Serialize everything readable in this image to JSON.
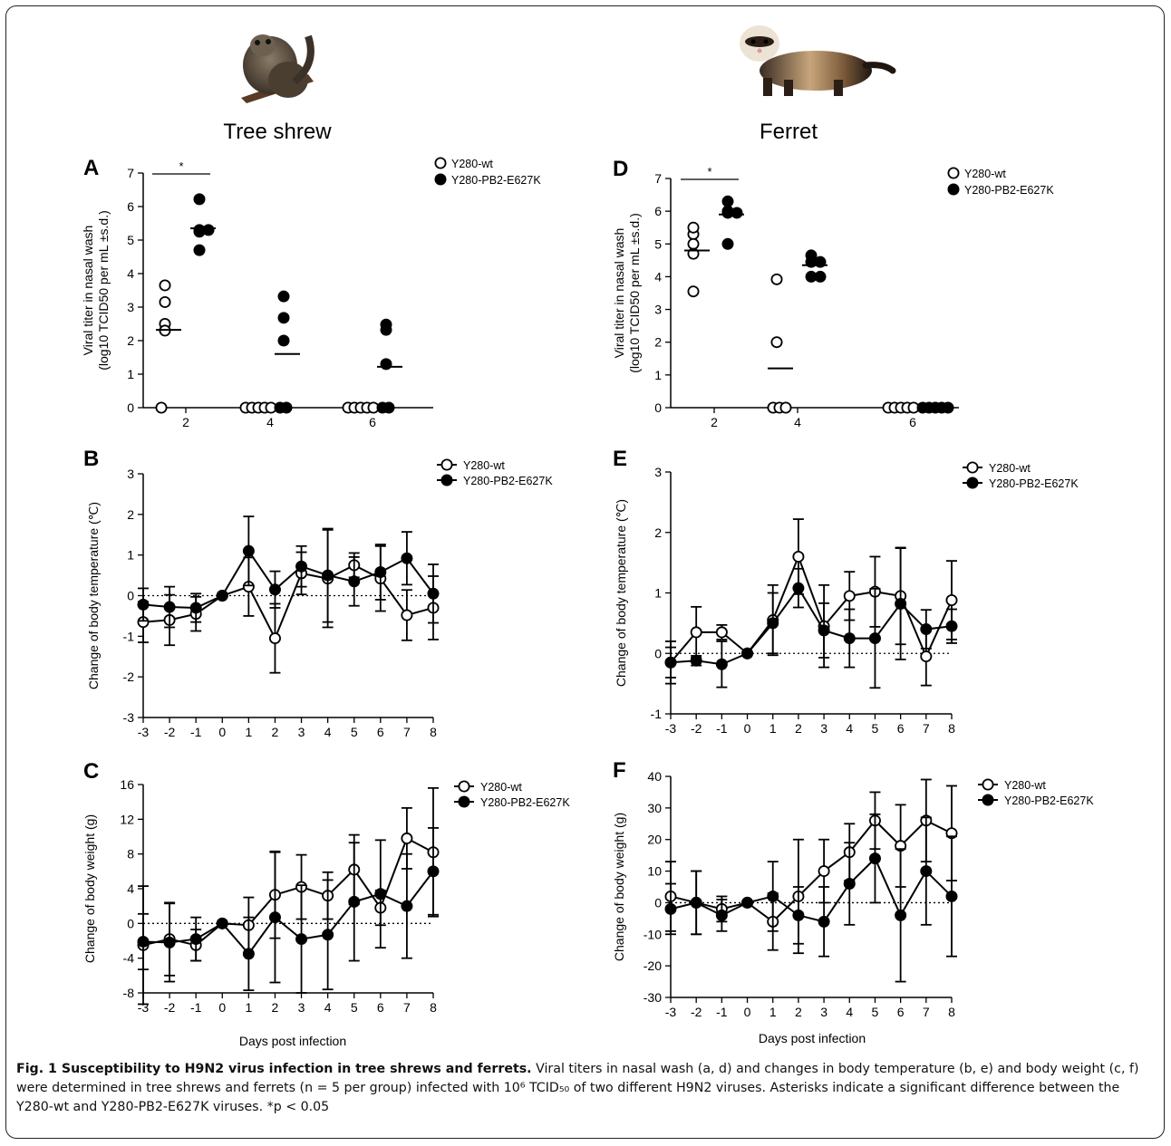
{
  "figure": {
    "animals": [
      {
        "name": "Tree shrew",
        "image_icon": "tree-shrew-photo"
      },
      {
        "name": "Ferret",
        "image_icon": "ferret-photo"
      }
    ],
    "shared_xlabel": "Days post infection"
  },
  "caption": {
    "bold": "Fig. 1 Susceptibility to H9N2 virus infection in tree shrews and ferrets.",
    "text": "Viral titers in nasal wash (a, d) and changes in body temperature (b, e) and body weight (c, f) were determined in tree shrews and ferrets (n = 5 per group) infected with 10⁶ TCID₅₀ of two different H9N2 viruses. Asterisks indicate a significant difference between the Y280-wt and Y280-PB2-E627K viruses. *p < 0.05"
  },
  "chart_data": [
    {
      "id": "A",
      "type": "scatter",
      "animal": "Tree shrew",
      "ylabel": [
        "Viral titer in nasal wash",
        "(log10 TCID50 per mL ±s.d.)"
      ],
      "ylim": [
        0,
        7
      ],
      "yticks": [
        0,
        1,
        2,
        3,
        4,
        5,
        6,
        7
      ],
      "categories": [
        "2",
        "4",
        "6"
      ],
      "legend": "top-right",
      "series": [
        {
          "name": "Y280-wt",
          "marker": "open",
          "points": [
            [
              2,
              3.65
            ],
            [
              2,
              3.15
            ],
            [
              2,
              2.5
            ],
            [
              2,
              2.3
            ],
            [
              2,
              0
            ],
            [
              4,
              0
            ],
            [
              4,
              0
            ],
            [
              4,
              0
            ],
            [
              4,
              0
            ],
            [
              4,
              0
            ],
            [
              6,
              0
            ],
            [
              6,
              0
            ],
            [
              6,
              0
            ],
            [
              6,
              0
            ],
            [
              6,
              0
            ]
          ],
          "means": [
            2.32,
            0,
            0
          ]
        },
        {
          "name": "Y280-PB2-E627K",
          "marker": "filled",
          "points": [
            [
              2,
              6.22
            ],
            [
              2,
              5.3
            ],
            [
              2,
              5.25
            ],
            [
              2,
              5.3
            ],
            [
              2,
              4.7
            ],
            [
              4,
              3.32
            ],
            [
              4,
              2.68
            ],
            [
              4,
              2.0
            ],
            [
              4,
              0
            ],
            [
              4,
              0
            ],
            [
              6,
              2.48
            ],
            [
              6,
              2.32
            ],
            [
              6,
              1.3
            ],
            [
              6,
              0
            ],
            [
              6,
              0
            ]
          ],
          "means": [
            5.35,
            1.6,
            1.22
          ]
        }
      ],
      "significance": [
        {
          "day": "2",
          "label": "*"
        }
      ]
    },
    {
      "id": "D",
      "type": "scatter",
      "animal": "Ferret",
      "ylabel": [
        "Viral titer in nasal wash",
        "(log10 TCID50 per mL ±s.d.)"
      ],
      "ylim": [
        0,
        7
      ],
      "yticks": [
        0,
        1,
        2,
        3,
        4,
        5,
        6,
        7
      ],
      "categories": [
        "2",
        "4",
        "6"
      ],
      "legend": "top-right",
      "series": [
        {
          "name": "Y280-wt",
          "marker": "open",
          "points": [
            [
              2,
              5.3
            ],
            [
              2,
              5.0
            ],
            [
              2,
              4.7
            ],
            [
              2,
              5.5
            ],
            [
              2,
              3.55
            ],
            [
              4,
              3.92
            ],
            [
              4,
              2.0
            ],
            [
              4,
              0
            ],
            [
              4,
              0
            ],
            [
              4,
              0
            ],
            [
              6,
              0
            ],
            [
              6,
              0
            ],
            [
              6,
              0
            ],
            [
              6,
              0
            ],
            [
              6,
              0
            ]
          ],
          "means": [
            4.8,
            1.2,
            0
          ]
        },
        {
          "name": "Y280-PB2-E627K",
          "marker": "filled",
          "points": [
            [
              2,
              6.3
            ],
            [
              2,
              6.0
            ],
            [
              2,
              5.95
            ],
            [
              2,
              5.95
            ],
            [
              2,
              5.0
            ],
            [
              4,
              4.65
            ],
            [
              4,
              4.45
            ],
            [
              4,
              4.0
            ],
            [
              4,
              4.0
            ],
            [
              4,
              4.45
            ],
            [
              6,
              0
            ],
            [
              6,
              0
            ],
            [
              6,
              0
            ],
            [
              6,
              0
            ],
            [
              6,
              0
            ]
          ],
          "means": [
            5.9,
            4.35,
            0
          ]
        }
      ],
      "significance": [
        {
          "day": "2",
          "label": "*"
        }
      ]
    },
    {
      "id": "B",
      "type": "line",
      "animal": "Tree shrew",
      "ylabel": [
        "Change of body temperature (℃)"
      ],
      "x": [
        -3,
        -2,
        -1,
        0,
        1,
        2,
        3,
        4,
        5,
        6,
        7,
        8
      ],
      "ylim": [
        -3,
        3
      ],
      "yticks": [
        -3,
        -2,
        -1,
        0,
        1,
        2,
        3
      ],
      "legend": "top-right",
      "series": [
        {
          "name": "Y280-wt",
          "marker": "open",
          "values": [
            -0.65,
            -0.6,
            -0.45,
            0,
            0.22,
            -1.05,
            0.55,
            0.42,
            0.75,
            0.42,
            -0.48,
            -0.3
          ],
          "err": [
            0.5,
            0.62,
            0.42,
            0,
            0.72,
            0.85,
            0.52,
            1.2,
            0.3,
            0.8,
            0.62,
            0.78
          ]
        },
        {
          "name": "Y280-PB2-E627K",
          "marker": "filled",
          "values": [
            -0.22,
            -0.28,
            -0.3,
            0,
            1.1,
            0.15,
            0.72,
            0.5,
            0.35,
            0.58,
            0.92,
            0.05
          ],
          "err": [
            0.4,
            0.5,
            0.35,
            0,
            0.85,
            0.45,
            0.5,
            1.15,
            0.6,
            0.68,
            0.65,
            0.72
          ]
        }
      ]
    },
    {
      "id": "E",
      "type": "line",
      "animal": "Ferret",
      "ylabel": [
        "Change of body temperature (℃)"
      ],
      "x": [
        -3,
        -2,
        -1,
        0,
        1,
        2,
        3,
        4,
        5,
        6,
        7,
        8
      ],
      "ylim": [
        -1,
        3
      ],
      "yticks": [
        -1,
        0,
        1,
        2,
        3
      ],
      "legend": "top-right",
      "series": [
        {
          "name": "Y280-wt",
          "marker": "open",
          "values": [
            -0.15,
            0.35,
            0.35,
            0,
            0.55,
            1.6,
            0.45,
            0.95,
            1.02,
            0.95,
            -0.05,
            0.88
          ],
          "err": [
            0.35,
            0.42,
            0.12,
            0,
            0.58,
            0.62,
            0.68,
            0.4,
            0.58,
            0.8,
            0.48,
            0.65
          ]
        },
        {
          "name": "Y280-PB2-E627K",
          "marker": "filled",
          "values": [
            -0.15,
            -0.12,
            -0.18,
            0,
            0.5,
            1.08,
            0.38,
            0.25,
            0.25,
            0.82,
            0.4,
            0.45
          ],
          "err": [
            0.25,
            0.08,
            0.38,
            0,
            0.5,
            0.32,
            0.45,
            0.48,
            0.82,
            0.92,
            0.32,
            0.28
          ]
        }
      ]
    },
    {
      "id": "C",
      "type": "line",
      "animal": "Tree shrew",
      "ylabel": [
        "Change of body weight (g)"
      ],
      "x": [
        -3,
        -2,
        -1,
        0,
        1,
        2,
        3,
        4,
        5,
        6,
        7,
        8
      ],
      "ylim": [
        -8,
        16
      ],
      "yticks": [
        -8,
        -4,
        0,
        4,
        8,
        12,
        16
      ],
      "legend": "top-right",
      "series": [
        {
          "name": "Y280-wt",
          "marker": "open",
          "values": [
            -2.5,
            -1.8,
            -2.5,
            0,
            -0.2,
            3.3,
            4.2,
            3.2,
            6.2,
            1.8,
            9.8,
            8.2
          ],
          "err": [
            6.8,
            4.2,
            1.8,
            0,
            3.2,
            5.0,
            3.7,
            2.7,
            4.0,
            2.0,
            3.5,
            7.4
          ]
        },
        {
          "name": "Y280-PB2-E627K",
          "marker": "filled",
          "values": [
            -2.1,
            -2.2,
            -1.8,
            0,
            -3.5,
            0.7,
            -1.8,
            -1.3,
            2.5,
            3.4,
            2.0,
            6.0
          ],
          "err": [
            3.2,
            4.5,
            2.5,
            0,
            4.2,
            7.5,
            6.2,
            6.3,
            6.8,
            6.2,
            6.0,
            5.0
          ]
        }
      ]
    },
    {
      "id": "F",
      "type": "line",
      "animal": "Ferret",
      "ylabel": [
        "Change of body weight (g)"
      ],
      "x": [
        -3,
        -2,
        -1,
        0,
        1,
        2,
        3,
        4,
        5,
        6,
        7,
        8
      ],
      "ylim": [
        -30,
        40
      ],
      "yticks": [
        -30,
        -20,
        -10,
        0,
        10,
        20,
        30,
        40
      ],
      "legend": "top-right",
      "series": [
        {
          "name": "Y280-wt",
          "marker": "open",
          "values": [
            2,
            0,
            -2,
            0,
            -6,
            2,
            10,
            16,
            26,
            18,
            26,
            22
          ],
          "err": [
            11,
            10,
            4,
            0,
            9,
            18,
            10,
            9,
            9,
            13,
            13,
            15
          ]
        },
        {
          "name": "Y280-PB2-E627K",
          "marker": "filled",
          "values": [
            -2,
            0,
            -4,
            0,
            2,
            -4,
            -6,
            6,
            14,
            -4,
            10,
            2
          ],
          "err": [
            8,
            10,
            5,
            0,
            11,
            9,
            11,
            13,
            14,
            21,
            17,
            19
          ]
        }
      ]
    }
  ]
}
